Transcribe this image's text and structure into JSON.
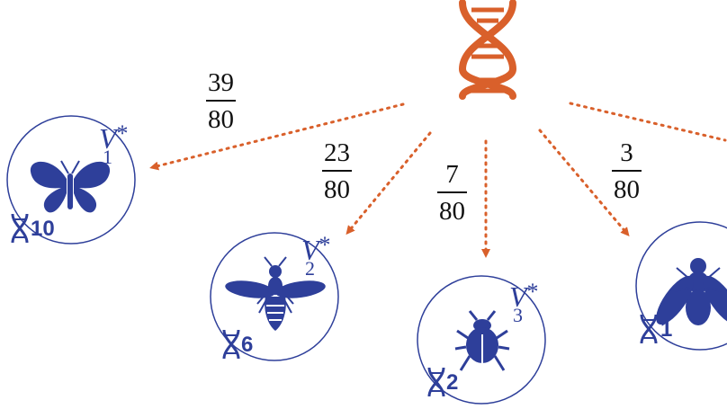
{
  "colors": {
    "accent_orange": "#d9602b",
    "node_blue": "#2e3f9a"
  },
  "root": {
    "icon": "dna-icon"
  },
  "edges": [
    {
      "numerator": "39",
      "denominator": "80"
    },
    {
      "numerator": "23",
      "denominator": "80"
    },
    {
      "numerator": "7",
      "denominator": "80"
    },
    {
      "numerator": "3",
      "denominator": "80"
    }
  ],
  "nodes": [
    {
      "variable": "V",
      "star": "*",
      "subscript": "1",
      "count": "10",
      "icon": "butterfly-icon"
    },
    {
      "variable": "V",
      "star": "*",
      "subscript": "2",
      "count": "6",
      "icon": "bee-icon"
    },
    {
      "variable": "V",
      "star": "*",
      "subscript": "3",
      "count": "2",
      "icon": "beetle-icon"
    },
    {
      "variable": "",
      "star": "",
      "subscript": "",
      "count": "1",
      "icon": "fly-icon"
    }
  ]
}
